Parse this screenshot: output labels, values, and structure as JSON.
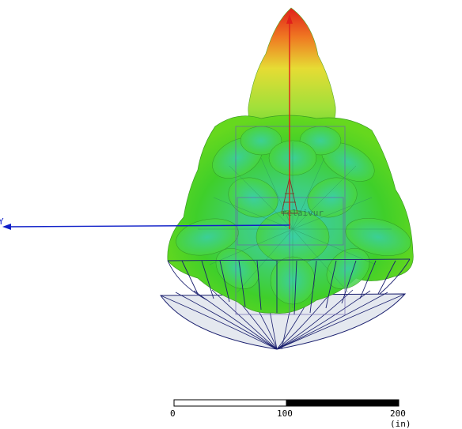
{
  "viewport": {
    "colors": {
      "background": "#ffffff",
      "lobe_high": "#e0201a",
      "lobe_mid": "#f0d030",
      "lobe_green": "#3fcf2a",
      "lobe_low": "#36c8b8",
      "axis_z": "#e0201a",
      "axis_x": "#1020c8",
      "reflector_fill": "#e4e8ef",
      "reflector_lines": "#1a1f6e",
      "bounding_box": "#6a5fb0"
    },
    "axis_label": "Y",
    "overlay_label": "relaivur"
  },
  "scale_bar": {
    "tick_labels": [
      "0",
      "100",
      "200 (in)"
    ]
  }
}
